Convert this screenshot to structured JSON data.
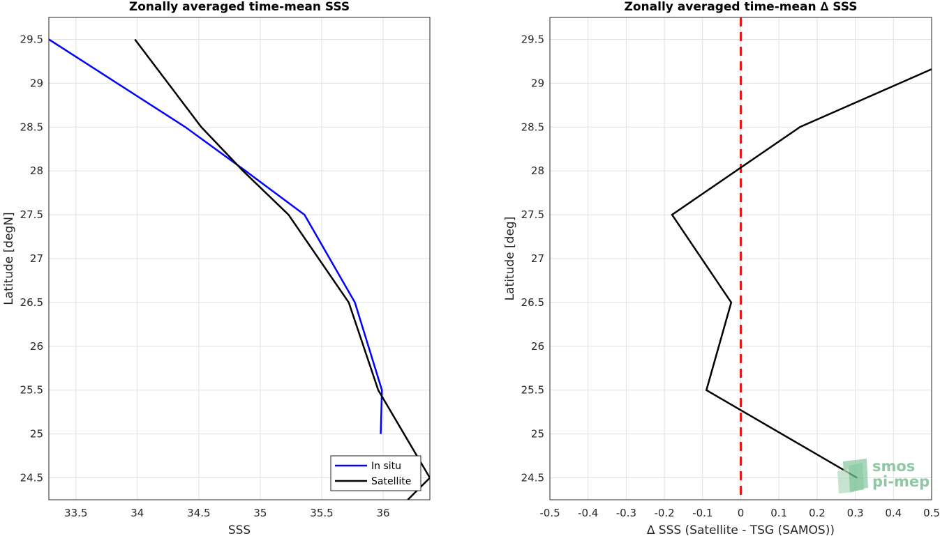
{
  "chart_data": [
    {
      "type": "line",
      "title": "Zonally averaged time-mean SSS",
      "xlabel": "SSS",
      "ylabel": "Latitude [degN]",
      "xlim": [
        33.28,
        36.38
      ],
      "ylim": [
        24.25,
        29.75
      ],
      "xticks": [
        33.5,
        34,
        34.5,
        35,
        35.5,
        36
      ],
      "xtick_labels": [
        "33.5",
        "34",
        "34.5",
        "35",
        "35.5",
        "36"
      ],
      "yticks": [
        24.5,
        25,
        25.5,
        26,
        26.5,
        27,
        27.5,
        28,
        28.5,
        29,
        29.5
      ],
      "ytick_labels": [
        "24.5",
        "25",
        "25.5",
        "26",
        "26.5",
        "27",
        "27.5",
        "28",
        "28.5",
        "29",
        "29.5"
      ],
      "grid": true,
      "legend_position": "bottom-right",
      "series": [
        {
          "name": "In situ",
          "color": "#0000ff",
          "x": [
            35.98,
            35.99,
            35.99,
            35.77,
            35.36,
            34.88,
            34.39,
            33.28
          ],
          "y": [
            25.0,
            25.5,
            25.5,
            26.5,
            27.5,
            28.0,
            28.5,
            29.5
          ]
        },
        {
          "name": "Satellite",
          "color": "#000000",
          "x": [
            36.2,
            36.38,
            35.96,
            35.72,
            35.23,
            34.86,
            34.52,
            33.98
          ],
          "y": [
            24.25,
            24.5,
            25.5,
            26.5,
            27.5,
            28.0,
            28.5,
            29.5
          ]
        }
      ]
    },
    {
      "type": "line",
      "title": "Zonally averaged time-mean ∆ SSS",
      "xlabel": "∆ SSS (Satellite - TSG (SAMOS))",
      "ylabel": "Latitude [deg]",
      "xlim": [
        -0.5,
        0.5
      ],
      "ylim": [
        24.25,
        29.75
      ],
      "xticks": [
        -0.5,
        -0.4,
        -0.3,
        -0.2,
        -0.1,
        0,
        0.1,
        0.2,
        0.3,
        0.4,
        0.5
      ],
      "xtick_labels": [
        "-0.5",
        "-0.4",
        "-0.3",
        "-0.2",
        "-0.1",
        "0",
        "0.1",
        "0.2",
        "0.3",
        "0.4",
        "0.5"
      ],
      "yticks": [
        24.5,
        25,
        25.5,
        26,
        26.5,
        27,
        27.5,
        28,
        28.5,
        29,
        29.5
      ],
      "ytick_labels": [
        "24.5",
        "25",
        "25.5",
        "26",
        "26.5",
        "27",
        "27.5",
        "28",
        "28.5",
        "29",
        "29.5"
      ],
      "grid": true,
      "reference_line": {
        "x": 0,
        "color": "#e31a1c",
        "style": "dashed"
      },
      "series": [
        {
          "color": "#000000",
          "x": [
            0.305,
            -0.09,
            -0.025,
            -0.18,
            0.155,
            0.5
          ],
          "y": [
            24.5,
            25.5,
            26.5,
            27.5,
            28.5,
            29.16
          ]
        }
      ]
    }
  ],
  "watermark": {
    "line1": "smos",
    "line2": "pi-mep",
    "color": "#8ec9a3"
  }
}
